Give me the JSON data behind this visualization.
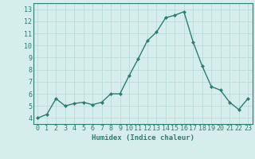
{
  "x": [
    0,
    1,
    2,
    3,
    4,
    5,
    6,
    7,
    8,
    9,
    10,
    11,
    12,
    13,
    14,
    15,
    16,
    17,
    18,
    19,
    20,
    21,
    22,
    23
  ],
  "y": [
    4.0,
    4.3,
    5.6,
    5.0,
    5.2,
    5.3,
    5.1,
    5.3,
    6.0,
    6.0,
    7.5,
    8.9,
    10.4,
    11.1,
    12.3,
    12.5,
    12.8,
    10.3,
    8.3,
    6.6,
    6.3,
    5.3,
    4.7,
    5.6
  ],
  "line_color": "#2e7d6e",
  "marker": "D",
  "marker_size": 2,
  "bg_color": "#d5eeeb",
  "grid_color": "#b8d8d4",
  "xlabel": "Humidex (Indice chaleur)",
  "ylim": [
    3.5,
    13.5
  ],
  "xlim": [
    -0.5,
    23.5
  ],
  "yticks": [
    4,
    5,
    6,
    7,
    8,
    9,
    10,
    11,
    12,
    13
  ],
  "xticks": [
    0,
    1,
    2,
    3,
    4,
    5,
    6,
    7,
    8,
    9,
    10,
    11,
    12,
    13,
    14,
    15,
    16,
    17,
    18,
    19,
    20,
    21,
    22,
    23
  ],
  "xlabel_fontsize": 6.5,
  "tick_fontsize": 6,
  "line_width": 1.0
}
